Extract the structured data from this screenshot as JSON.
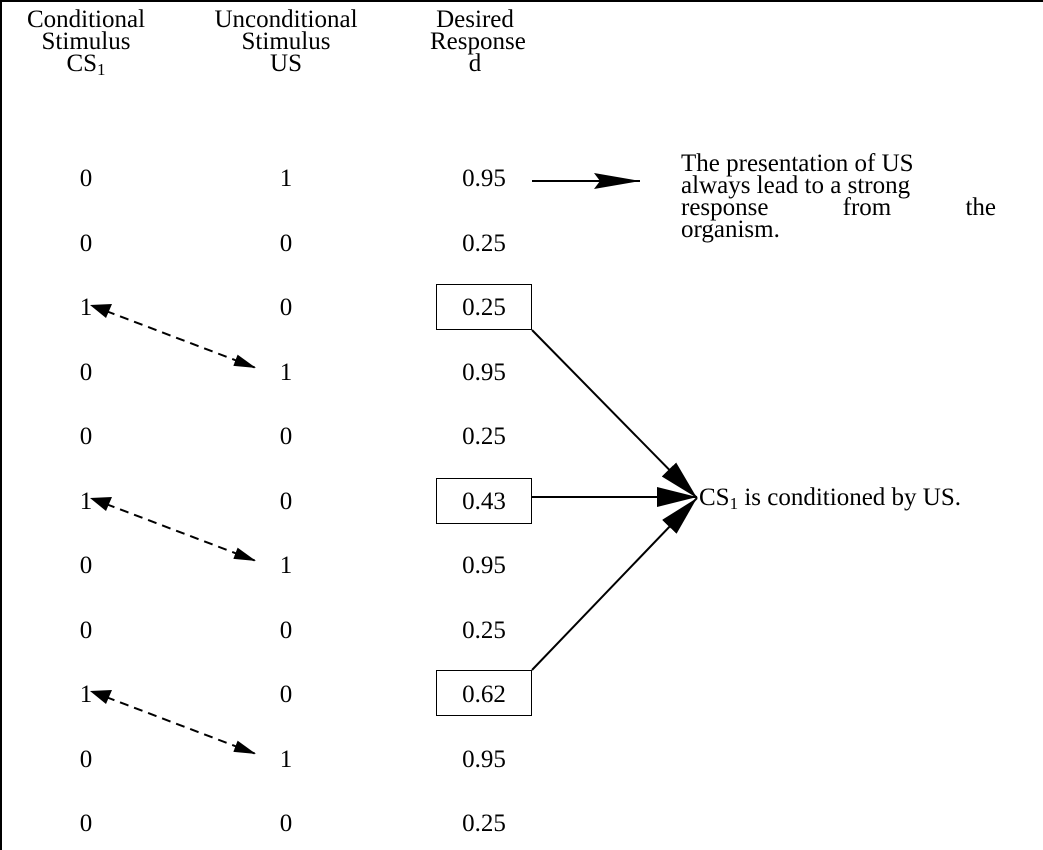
{
  "headers": {
    "cs": [
      "Conditional",
      "Stimulus",
      "CS",
      "1"
    ],
    "us": [
      "Unconditional",
      "Stimulus",
      "US"
    ],
    "d": [
      "Desired",
      "Response",
      "d"
    ]
  },
  "rows": [
    {
      "cs": "0",
      "us": "1",
      "d": "0.95"
    },
    {
      "cs": "0",
      "us": "0",
      "d": "0.25"
    },
    {
      "cs": "1",
      "us": "0",
      "d": "0.25"
    },
    {
      "cs": "0",
      "us": "1",
      "d": "0.95"
    },
    {
      "cs": "0",
      "us": "0",
      "d": "0.25"
    },
    {
      "cs": "1",
      "us": "0",
      "d": "0.43"
    },
    {
      "cs": "0",
      "us": "1",
      "d": "0.95"
    },
    {
      "cs": "0",
      "us": "0",
      "d": "0.25"
    },
    {
      "cs": "1",
      "us": "0",
      "d": "0.62"
    },
    {
      "cs": "0",
      "us": "1",
      "d": "0.95"
    },
    {
      "cs": "0",
      "us": "0",
      "d": "0.25"
    }
  ],
  "note_top": {
    "line1": "The presentation of US",
    "line2": "always lead to a strong",
    "line3_words": [
      "response",
      "from",
      "the"
    ],
    "line4": "organism."
  },
  "note_conditioned": {
    "prefix": "CS",
    "sub": "1",
    "suffix": " is conditioned by US."
  }
}
